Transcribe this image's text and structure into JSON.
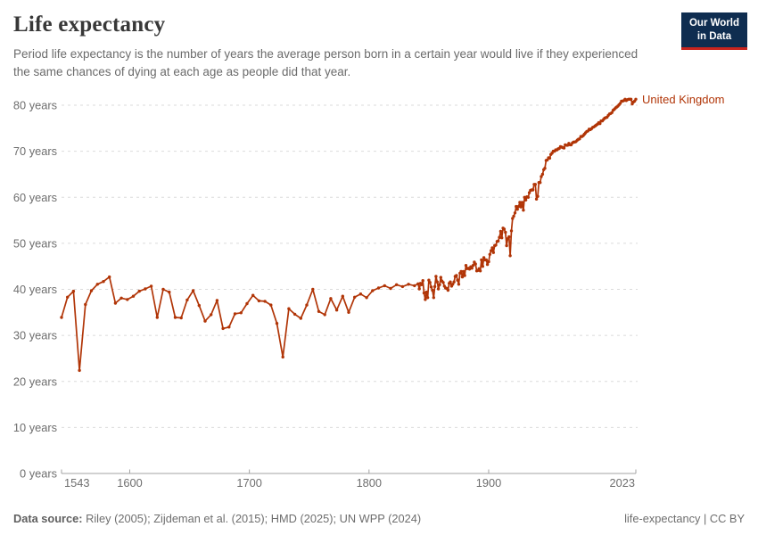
{
  "header": {
    "title": "Life expectancy",
    "subtitle": "Period life expectancy is the number of years the average person born in a certain year would live if they experienced the same chances of dying at each age as people did that year.",
    "logo": {
      "line1": "Our World",
      "line2": "in Data"
    }
  },
  "footer": {
    "datasource_label": "Data source:",
    "datasource_value": "Riley (2005); Zijdeman et al. (2015); HMD (2025); UN WPP (2024)",
    "license": "life-expectancy | CC BY"
  },
  "colors": {
    "line": "#B13507",
    "logo_bg": "#0F2D50",
    "logo_bar": "#C8241E",
    "grid": "#DBDBDB",
    "axis": "#A3A3A3",
    "axis_text": "#6E6E6E"
  },
  "chart_data": {
    "type": "line",
    "title": "Life expectancy",
    "xlabel": "",
    "ylabel": "years",
    "xlim": [
      1543,
      2023
    ],
    "ylim": [
      0,
      80
    ],
    "grid": "horizontal-dashed",
    "x_ticks": [
      1543,
      1600,
      1700,
      1800,
      1900,
      2023
    ],
    "y_ticks": [
      0,
      10,
      20,
      30,
      40,
      50,
      60,
      70,
      80
    ],
    "y_tick_suffix": " years",
    "legend_position": "end-of-line-label",
    "series": [
      {
        "name": "United Kingdom",
        "color": "#B13507",
        "points": [
          [
            1543,
            33.9
          ],
          [
            1548,
            38.3
          ],
          [
            1553,
            39.6
          ],
          [
            1558,
            22.4
          ],
          [
            1563,
            36.7
          ],
          [
            1568,
            39.7
          ],
          [
            1573,
            41.1
          ],
          [
            1578,
            41.7
          ],
          [
            1583,
            42.7
          ],
          [
            1588,
            37.0
          ],
          [
            1593,
            38.1
          ],
          [
            1598,
            37.8
          ],
          [
            1603,
            38.5
          ],
          [
            1608,
            39.6
          ],
          [
            1613,
            40.1
          ],
          [
            1618,
            40.7
          ],
          [
            1623,
            33.9
          ],
          [
            1628,
            40.0
          ],
          [
            1633,
            39.4
          ],
          [
            1638,
            33.9
          ],
          [
            1643,
            33.8
          ],
          [
            1648,
            37.7
          ],
          [
            1653,
            39.7
          ],
          [
            1658,
            36.5
          ],
          [
            1663,
            33.1
          ],
          [
            1668,
            34.5
          ],
          [
            1673,
            37.6
          ],
          [
            1678,
            31.5
          ],
          [
            1683,
            31.8
          ],
          [
            1688,
            34.7
          ],
          [
            1693,
            34.9
          ],
          [
            1698,
            36.9
          ],
          [
            1703,
            38.7
          ],
          [
            1708,
            37.5
          ],
          [
            1713,
            37.4
          ],
          [
            1718,
            36.6
          ],
          [
            1723,
            32.6
          ],
          [
            1728,
            25.3
          ],
          [
            1733,
            35.8
          ],
          [
            1738,
            34.6
          ],
          [
            1743,
            33.7
          ],
          [
            1748,
            36.6
          ],
          [
            1753,
            40.0
          ],
          [
            1758,
            35.2
          ],
          [
            1763,
            34.5
          ],
          [
            1768,
            38.0
          ],
          [
            1773,
            35.5
          ],
          [
            1778,
            38.5
          ],
          [
            1783,
            35.0
          ],
          [
            1788,
            38.3
          ],
          [
            1793,
            39.0
          ],
          [
            1798,
            38.2
          ],
          [
            1803,
            39.7
          ],
          [
            1808,
            40.3
          ],
          [
            1813,
            40.8
          ],
          [
            1818,
            40.2
          ],
          [
            1823,
            41.0
          ],
          [
            1828,
            40.6
          ],
          [
            1833,
            41.1
          ],
          [
            1838,
            40.8
          ],
          [
            1841,
            41.2
          ],
          [
            1842,
            40.1
          ],
          [
            1843,
            41.3
          ],
          [
            1844,
            41.0
          ],
          [
            1845,
            41.9
          ],
          [
            1846,
            39.2
          ],
          [
            1847,
            37.8
          ],
          [
            1848,
            39.4
          ],
          [
            1849,
            38.2
          ],
          [
            1850,
            42.0
          ],
          [
            1851,
            41.5
          ],
          [
            1852,
            40.5
          ],
          [
            1853,
            39.8
          ],
          [
            1854,
            38.2
          ],
          [
            1855,
            40.6
          ],
          [
            1856,
            42.8
          ],
          [
            1857,
            41.6
          ],
          [
            1858,
            40.1
          ],
          [
            1859,
            41.0
          ],
          [
            1860,
            42.6
          ],
          [
            1861,
            41.8
          ],
          [
            1862,
            41.5
          ],
          [
            1863,
            40.7
          ],
          [
            1864,
            40.3
          ],
          [
            1865,
            40.2
          ],
          [
            1866,
            39.8
          ],
          [
            1867,
            41.3
          ],
          [
            1868,
            41.6
          ],
          [
            1869,
            40.7
          ],
          [
            1870,
            41.1
          ],
          [
            1871,
            41.6
          ],
          [
            1872,
            42.8
          ],
          [
            1873,
            43.0
          ],
          [
            1874,
            42.0
          ],
          [
            1875,
            41.1
          ],
          [
            1876,
            43.5
          ],
          [
            1877,
            43.9
          ],
          [
            1878,
            42.7
          ],
          [
            1879,
            43.9
          ],
          [
            1880,
            43.0
          ],
          [
            1881,
            45.2
          ],
          [
            1882,
            44.5
          ],
          [
            1883,
            44.6
          ],
          [
            1884,
            44.4
          ],
          [
            1885,
            44.9
          ],
          [
            1886,
            44.6
          ],
          [
            1887,
            45.2
          ],
          [
            1888,
            45.9
          ],
          [
            1889,
            45.5
          ],
          [
            1890,
            44.0
          ],
          [
            1891,
            44.1
          ],
          [
            1892,
            44.5
          ],
          [
            1893,
            44.0
          ],
          [
            1894,
            46.4
          ],
          [
            1895,
            45.0
          ],
          [
            1896,
            46.9
          ],
          [
            1897,
            46.4
          ],
          [
            1898,
            46.4
          ],
          [
            1899,
            45.4
          ],
          [
            1900,
            46.0
          ],
          [
            1901,
            47.6
          ],
          [
            1902,
            48.4
          ],
          [
            1903,
            49.0
          ],
          [
            1904,
            48.0
          ],
          [
            1905,
            49.5
          ],
          [
            1906,
            49.6
          ],
          [
            1907,
            50.4
          ],
          [
            1908,
            50.5
          ],
          [
            1909,
            51.3
          ],
          [
            1910,
            52.6
          ],
          [
            1911,
            51.2
          ],
          [
            1912,
            53.3
          ],
          [
            1913,
            53.1
          ],
          [
            1914,
            52.4
          ],
          [
            1915,
            49.5
          ],
          [
            1916,
            51.0
          ],
          [
            1917,
            51.4
          ],
          [
            1918,
            47.3
          ],
          [
            1919,
            52.7
          ],
          [
            1920,
            55.4
          ],
          [
            1921,
            55.9
          ],
          [
            1922,
            56.6
          ],
          [
            1923,
            58.0
          ],
          [
            1924,
            57.4
          ],
          [
            1925,
            58.0
          ],
          [
            1926,
            58.9
          ],
          [
            1927,
            57.9
          ],
          [
            1928,
            58.9
          ],
          [
            1929,
            57.2
          ],
          [
            1930,
            60.0
          ],
          [
            1931,
            59.4
          ],
          [
            1932,
            60.1
          ],
          [
            1933,
            60.0
          ],
          [
            1934,
            61.0
          ],
          [
            1935,
            61.5
          ],
          [
            1936,
            61.6
          ],
          [
            1937,
            61.6
          ],
          [
            1938,
            62.8
          ],
          [
            1939,
            62.8
          ],
          [
            1940,
            59.6
          ],
          [
            1941,
            60.2
          ],
          [
            1942,
            63.2
          ],
          [
            1943,
            63.2
          ],
          [
            1944,
            64.5
          ],
          [
            1945,
            65.0
          ],
          [
            1946,
            66.0
          ],
          [
            1947,
            66.3
          ],
          [
            1948,
            68.0
          ],
          [
            1949,
            68.1
          ],
          [
            1950,
            68.6
          ],
          [
            1951,
            68.5
          ],
          [
            1952,
            69.3
          ],
          [
            1953,
            69.6
          ],
          [
            1954,
            70.0
          ],
          [
            1955,
            70.0
          ],
          [
            1956,
            70.3
          ],
          [
            1957,
            70.3
          ],
          [
            1958,
            70.5
          ],
          [
            1959,
            70.6
          ],
          [
            1960,
            71.0
          ],
          [
            1961,
            70.9
          ],
          [
            1962,
            70.8
          ],
          [
            1963,
            70.7
          ],
          [
            1964,
            71.4
          ],
          [
            1965,
            71.3
          ],
          [
            1966,
            71.3
          ],
          [
            1967,
            71.7
          ],
          [
            1968,
            71.4
          ],
          [
            1969,
            71.4
          ],
          [
            1970,
            71.8
          ],
          [
            1971,
            72.0
          ],
          [
            1972,
            72.0
          ],
          [
            1973,
            72.1
          ],
          [
            1974,
            72.4
          ],
          [
            1975,
            72.6
          ],
          [
            1976,
            72.7
          ],
          [
            1977,
            73.2
          ],
          [
            1978,
            73.2
          ],
          [
            1979,
            73.4
          ],
          [
            1980,
            73.7
          ],
          [
            1981,
            74.0
          ],
          [
            1982,
            74.3
          ],
          [
            1983,
            74.4
          ],
          [
            1984,
            74.8
          ],
          [
            1985,
            74.7
          ],
          [
            1986,
            74.9
          ],
          [
            1987,
            75.2
          ],
          [
            1988,
            75.3
          ],
          [
            1989,
            75.5
          ],
          [
            1990,
            75.7
          ],
          [
            1991,
            75.9
          ],
          [
            1992,
            76.2
          ],
          [
            1993,
            76.0
          ],
          [
            1994,
            76.6
          ],
          [
            1995,
            76.6
          ],
          [
            1996,
            76.9
          ],
          [
            1997,
            77.2
          ],
          [
            1998,
            77.3
          ],
          [
            1999,
            77.4
          ],
          [
            2000,
            77.8
          ],
          [
            2001,
            78.1
          ],
          [
            2002,
            78.2
          ],
          [
            2003,
            78.4
          ],
          [
            2004,
            78.9
          ],
          [
            2005,
            79.1
          ],
          [
            2006,
            79.4
          ],
          [
            2007,
            79.6
          ],
          [
            2008,
            79.8
          ],
          [
            2009,
            80.1
          ],
          [
            2010,
            80.4
          ],
          [
            2011,
            80.9
          ],
          [
            2012,
            80.9
          ],
          [
            2013,
            81.0
          ],
          [
            2014,
            81.3
          ],
          [
            2015,
            81.0
          ],
          [
            2016,
            81.2
          ],
          [
            2017,
            81.3
          ],
          [
            2018,
            81.3
          ],
          [
            2019,
            81.3
          ],
          [
            2020,
            80.3
          ],
          [
            2021,
            80.7
          ],
          [
            2022,
            80.9
          ],
          [
            2023,
            81.3
          ]
        ]
      }
    ]
  }
}
